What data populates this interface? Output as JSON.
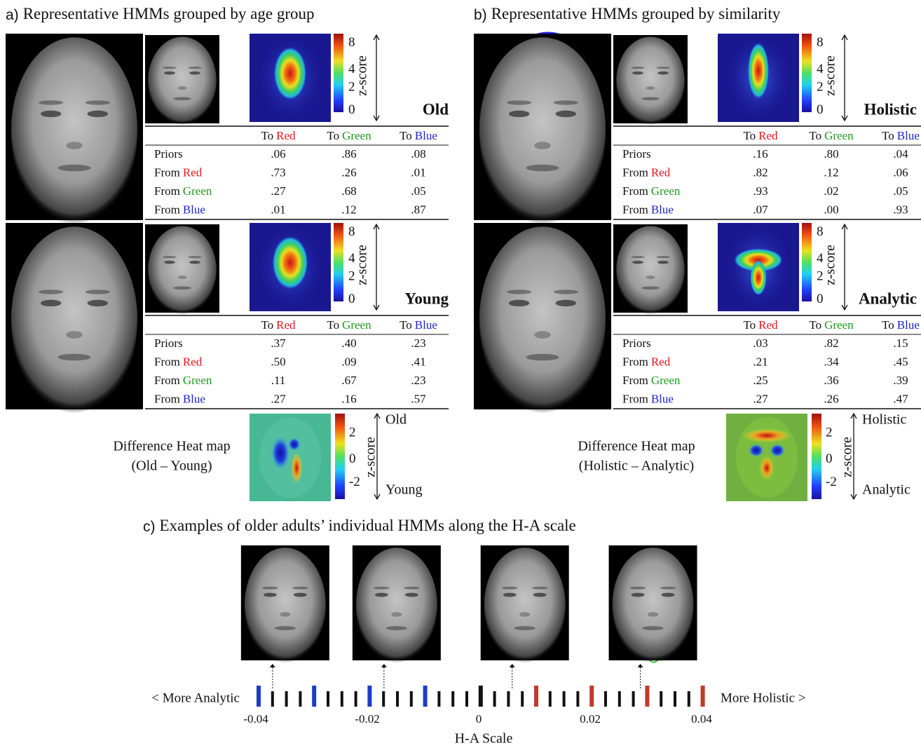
{
  "panels": [
    {
      "label": "a)",
      "title": "Representative HMMs grouped by age group",
      "groups": [
        {
          "name": "Old",
          "colorbar_ticks": [
            "8",
            "4",
            "2",
            "0"
          ],
          "axis_label": "z-score",
          "columns": [
            {
              "prefix": "To",
              "word": "Red",
              "color": "#e8141c"
            },
            {
              "prefix": "To",
              "word": "Green",
              "color": "#1e9a1e"
            },
            {
              "prefix": "To",
              "word": "Blue",
              "color": "#1c22cc"
            }
          ],
          "rows": [
            {
              "prefix": "Priors",
              "values": [
                ".06",
                ".86",
                ".08"
              ]
            },
            {
              "prefix": "From",
              "word": "Red",
              "color": "#e8141c",
              "values": [
                ".73",
                ".26",
                ".01"
              ]
            },
            {
              "prefix": "From",
              "word": "Green",
              "color": "#1e9a1e",
              "values": [
                ".27",
                ".68",
                ".05"
              ]
            },
            {
              "prefix": "From",
              "word": "Blue",
              "color": "#1c22cc",
              "values": [
                ".01",
                ".12",
                ".87"
              ]
            }
          ]
        },
        {
          "name": "Young",
          "colorbar_ticks": [
            "8",
            "4",
            "2",
            "0"
          ],
          "axis_label": "z-score",
          "columns": [
            {
              "prefix": "To",
              "word": "Red",
              "color": "#e8141c"
            },
            {
              "prefix": "To",
              "word": "Green",
              "color": "#1e9a1e"
            },
            {
              "prefix": "To",
              "word": "Blue",
              "color": "#1c22cc"
            }
          ],
          "rows": [
            {
              "prefix": "Priors",
              "values": [
                ".37",
                ".40",
                ".23"
              ]
            },
            {
              "prefix": "From",
              "word": "Red",
              "color": "#e8141c",
              "values": [
                ".50",
                ".09",
                ".41"
              ]
            },
            {
              "prefix": "From",
              "word": "Green",
              "color": "#1e9a1e",
              "values": [
                ".11",
                ".67",
                ".23"
              ]
            },
            {
              "prefix": "From",
              "word": "Blue",
              "color": "#1c22cc",
              "values": [
                ".27",
                ".16",
                ".57"
              ]
            }
          ]
        }
      ],
      "difference": {
        "title": "Difference Heat map",
        "subtitle": "(Old – Young)",
        "colorbar_ticks": [
          "2",
          "0",
          "-2"
        ],
        "axis_label": "z-score",
        "top": "Old",
        "bottom": "Young"
      }
    },
    {
      "label": "b)",
      "title": "Representative HMMs grouped by similarity",
      "groups": [
        {
          "name": "Holistic",
          "colorbar_ticks": [
            "8",
            "4",
            "2",
            "0"
          ],
          "axis_label": "z-score",
          "columns": [
            {
              "prefix": "To",
              "word": "Red",
              "color": "#e8141c"
            },
            {
              "prefix": "To",
              "word": "Green",
              "color": "#1e9a1e"
            },
            {
              "prefix": "To",
              "word": "Blue",
              "color": "#1c22cc"
            }
          ],
          "rows": [
            {
              "prefix": "Priors",
              "values": [
                ".16",
                ".80",
                ".04"
              ]
            },
            {
              "prefix": "From",
              "word": "Red",
              "color": "#e8141c",
              "values": [
                ".82",
                ".12",
                ".06"
              ]
            },
            {
              "prefix": "From",
              "word": "Green",
              "color": "#1e9a1e",
              "values": [
                ".93",
                ".02",
                ".05"
              ]
            },
            {
              "prefix": "From",
              "word": "Blue",
              "color": "#1c22cc",
              "values": [
                ".07",
                ".00",
                ".93"
              ]
            }
          ]
        },
        {
          "name": "Analytic",
          "colorbar_ticks": [
            "8",
            "4",
            "2",
            "0"
          ],
          "axis_label": "z-score",
          "columns": [
            {
              "prefix": "To",
              "word": "Red",
              "color": "#e8141c"
            },
            {
              "prefix": "To",
              "word": "Green",
              "color": "#1e9a1e"
            },
            {
              "prefix": "To",
              "word": "Blue",
              "color": "#1c22cc"
            }
          ],
          "rows": [
            {
              "prefix": "Priors",
              "values": [
                ".03",
                ".82",
                ".15"
              ]
            },
            {
              "prefix": "From",
              "word": "Red",
              "color": "#e8141c",
              "values": [
                ".21",
                ".34",
                ".45"
              ]
            },
            {
              "prefix": "From",
              "word": "Green",
              "color": "#1e9a1e",
              "values": [
                ".25",
                ".36",
                ".39"
              ]
            },
            {
              "prefix": "From",
              "word": "Blue",
              "color": "#1c22cc",
              "values": [
                ".27",
                ".26",
                ".47"
              ]
            }
          ]
        }
      ],
      "difference": {
        "title": "Difference Heat map",
        "subtitle": "(Holistic – Analytic)",
        "colorbar_ticks": [
          "2",
          "0",
          "-2"
        ],
        "axis_label": "z-score",
        "top": "Holistic",
        "bottom": "Analytic"
      }
    }
  ],
  "scale": {
    "label": "c)",
    "title": "Examples of older adults’ individual HMMs along the H-A scale",
    "left": "< More Analytic",
    "right": "More Holistic >",
    "xlabel": "H-A Scale",
    "xlim": [
      -0.04,
      0.04
    ],
    "xticks": [
      -0.04,
      -0.02,
      0,
      0.02,
      0.04
    ],
    "examples": [
      -0.037,
      -0.017,
      0.006,
      0.029
    ]
  }
}
